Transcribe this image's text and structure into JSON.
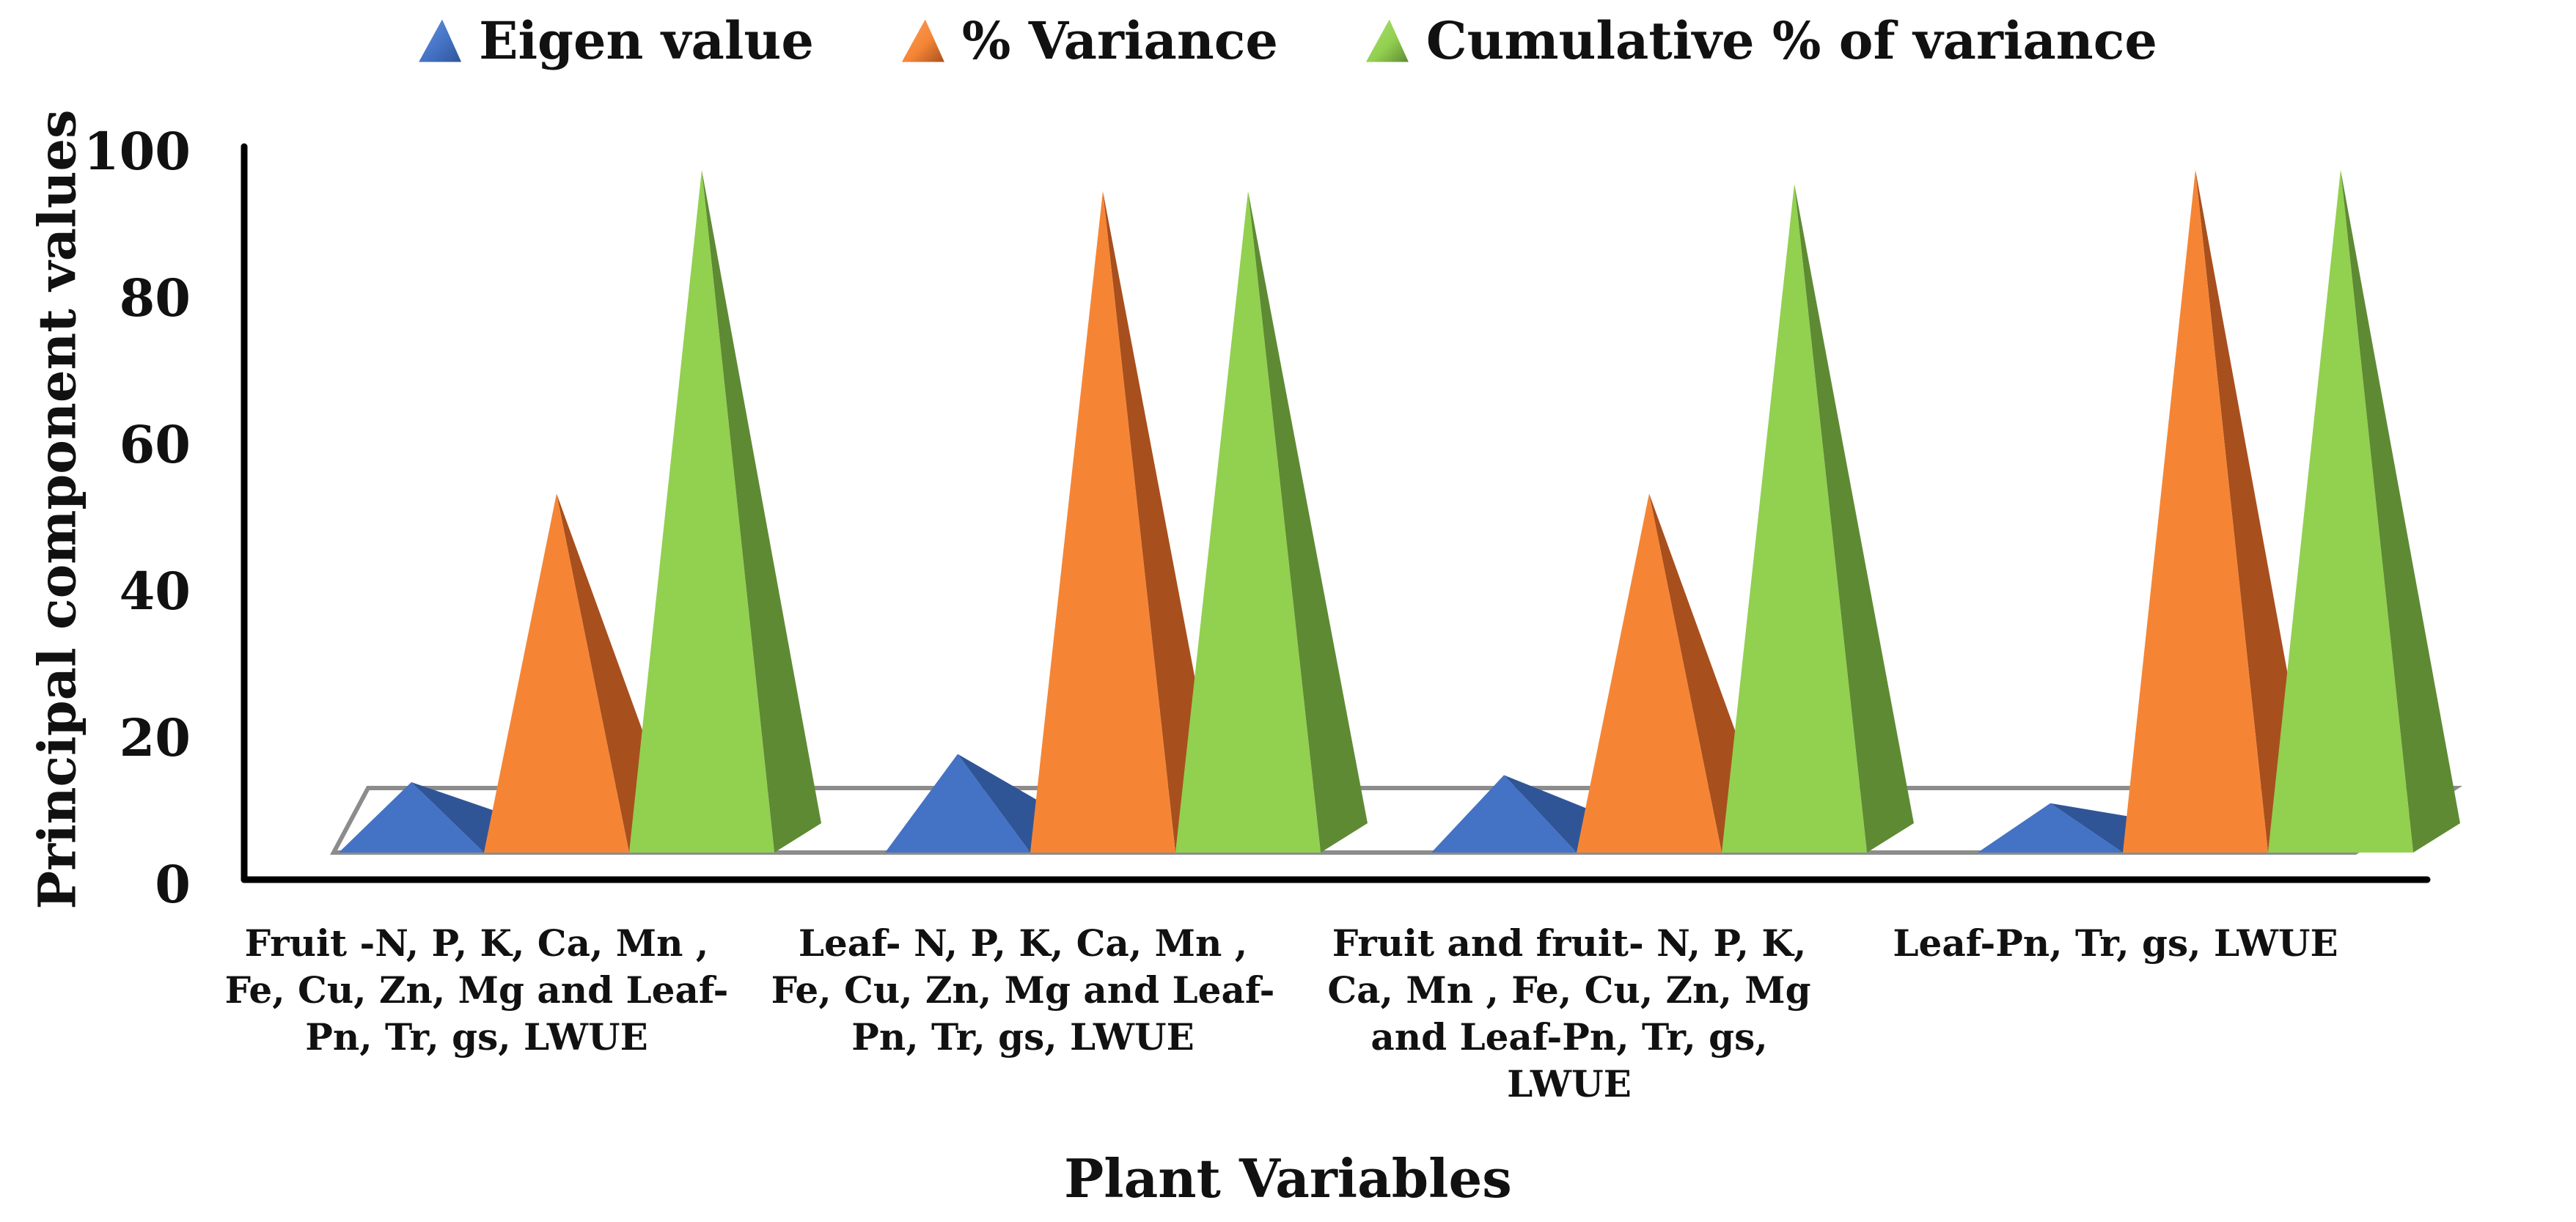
{
  "chart_data": {
    "type": "bar",
    "style": "3d-pyramid",
    "title": "",
    "xlabel": "Plant Variables",
    "ylabel": "Principal component values",
    "ylim": [
      0,
      100
    ],
    "yticks": [
      "0",
      "20",
      "40",
      "60",
      "80",
      "100"
    ],
    "legend_position": "top",
    "categories": [
      "Fruit -N, P, K, Ca, Mn ,\nFe, Cu, Zn, Mg and Leaf-\nPn, Tr, gs, LWUE",
      "Leaf- N, P, K, Ca, Mn ,\nFe, Cu, Zn, Mg and Leaf-\nPn, Tr, gs, LWUE",
      "Fruit  and fruit- N, P, K,\nCa, Mn , Fe, Cu, Zn, Mg\nand Leaf-Pn, Tr, gs,\nLWUE",
      "Leaf-Pn, Tr, gs, LWUE"
    ],
    "series": [
      {
        "name": "Eigen value",
        "color": "#4472C4",
        "side_color": "#2F5597",
        "values": [
          10,
          14,
          11,
          7
        ]
      },
      {
        "name": "% Variance",
        "color": "#F58535",
        "side_color": "#A84F1E",
        "values": [
          51,
          94,
          51,
          97
        ]
      },
      {
        "name": "Cumulative % of variance",
        "color": "#92D050",
        "side_color": "#5E8A34",
        "values": [
          97,
          94,
          95,
          97
        ]
      }
    ]
  }
}
